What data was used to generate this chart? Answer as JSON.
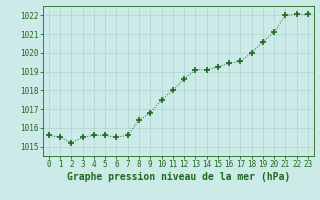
{
  "x": [
    0,
    1,
    2,
    3,
    4,
    5,
    6,
    7,
    8,
    9,
    10,
    11,
    12,
    13,
    14,
    15,
    16,
    17,
    18,
    19,
    20,
    21,
    22,
    23
  ],
  "y": [
    1015.6,
    1015.5,
    1015.2,
    1015.5,
    1015.6,
    1015.6,
    1015.5,
    1015.6,
    1016.4,
    1016.8,
    1017.5,
    1018.0,
    1018.6,
    1019.1,
    1019.1,
    1019.25,
    1019.45,
    1019.55,
    1020.0,
    1020.6,
    1021.1,
    1022.0,
    1022.05,
    1022.05
  ],
  "line_color": "#1a6b1a",
  "marker_color": "#1a6b1a",
  "bg_color": "#cceae7",
  "grid_color": "#b0d4d0",
  "title": "Graphe pression niveau de la mer (hPa)",
  "ylim": [
    1014.5,
    1022.5
  ],
  "yticks": [
    1015,
    1016,
    1017,
    1018,
    1019,
    1020,
    1021,
    1022
  ],
  "xlim": [
    -0.5,
    23.5
  ],
  "xticks": [
    0,
    1,
    2,
    3,
    4,
    5,
    6,
    7,
    8,
    9,
    10,
    11,
    12,
    13,
    14,
    15,
    16,
    17,
    18,
    19,
    20,
    21,
    22,
    23
  ],
  "title_fontsize": 7,
  "tick_fontsize": 5.5,
  "title_color": "#1a6b1a"
}
